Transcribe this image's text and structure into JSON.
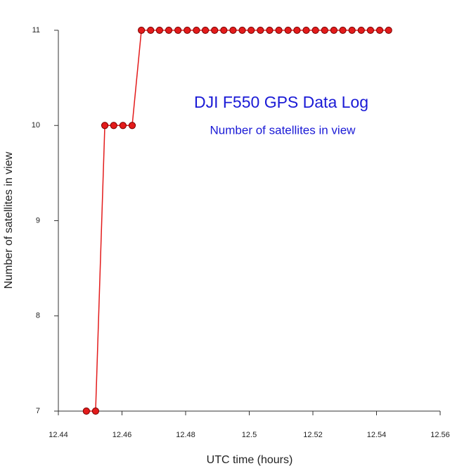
{
  "chart_data": {
    "type": "line",
    "annotations": [
      "DJI F550 GPS Data Log",
      "Number of satellites in view"
    ],
    "x_label": "UTC time (hours)",
    "y_label": "Number of satellites in view",
    "x": [
      12.4488,
      12.4517,
      12.4546,
      12.4574,
      12.4603,
      12.4632,
      12.4661,
      12.469,
      12.4718,
      12.4747,
      12.4776,
      12.4805,
      12.4834,
      12.4862,
      12.4891,
      12.492,
      12.4949,
      12.4978,
      12.5006,
      12.5035,
      12.5064,
      12.5093,
      12.5122,
      12.515,
      12.5179,
      12.5208,
      12.5237,
      12.5266,
      12.5294,
      12.5323,
      12.5352,
      12.5381,
      12.541,
      12.5438
    ],
    "series": [
      {
        "color": "#e31b1b",
        "values": [
          7,
          7,
          10,
          10,
          10,
          10,
          11,
          11,
          11,
          11,
          11,
          11,
          11,
          11,
          11,
          11,
          11,
          11,
          11,
          11,
          11,
          11,
          11,
          11,
          11,
          11,
          11,
          11,
          11,
          11,
          11,
          11,
          11,
          11
        ]
      }
    ],
    "xlim": [
      12.44,
      12.56
    ],
    "xticks": [
      12.44,
      12.46,
      12.48,
      12.5,
      12.52,
      12.54,
      12.56
    ],
    "ylim": [
      7,
      11
    ],
    "yticks": [
      7,
      8,
      9,
      10,
      11
    ],
    "grid": false
  }
}
